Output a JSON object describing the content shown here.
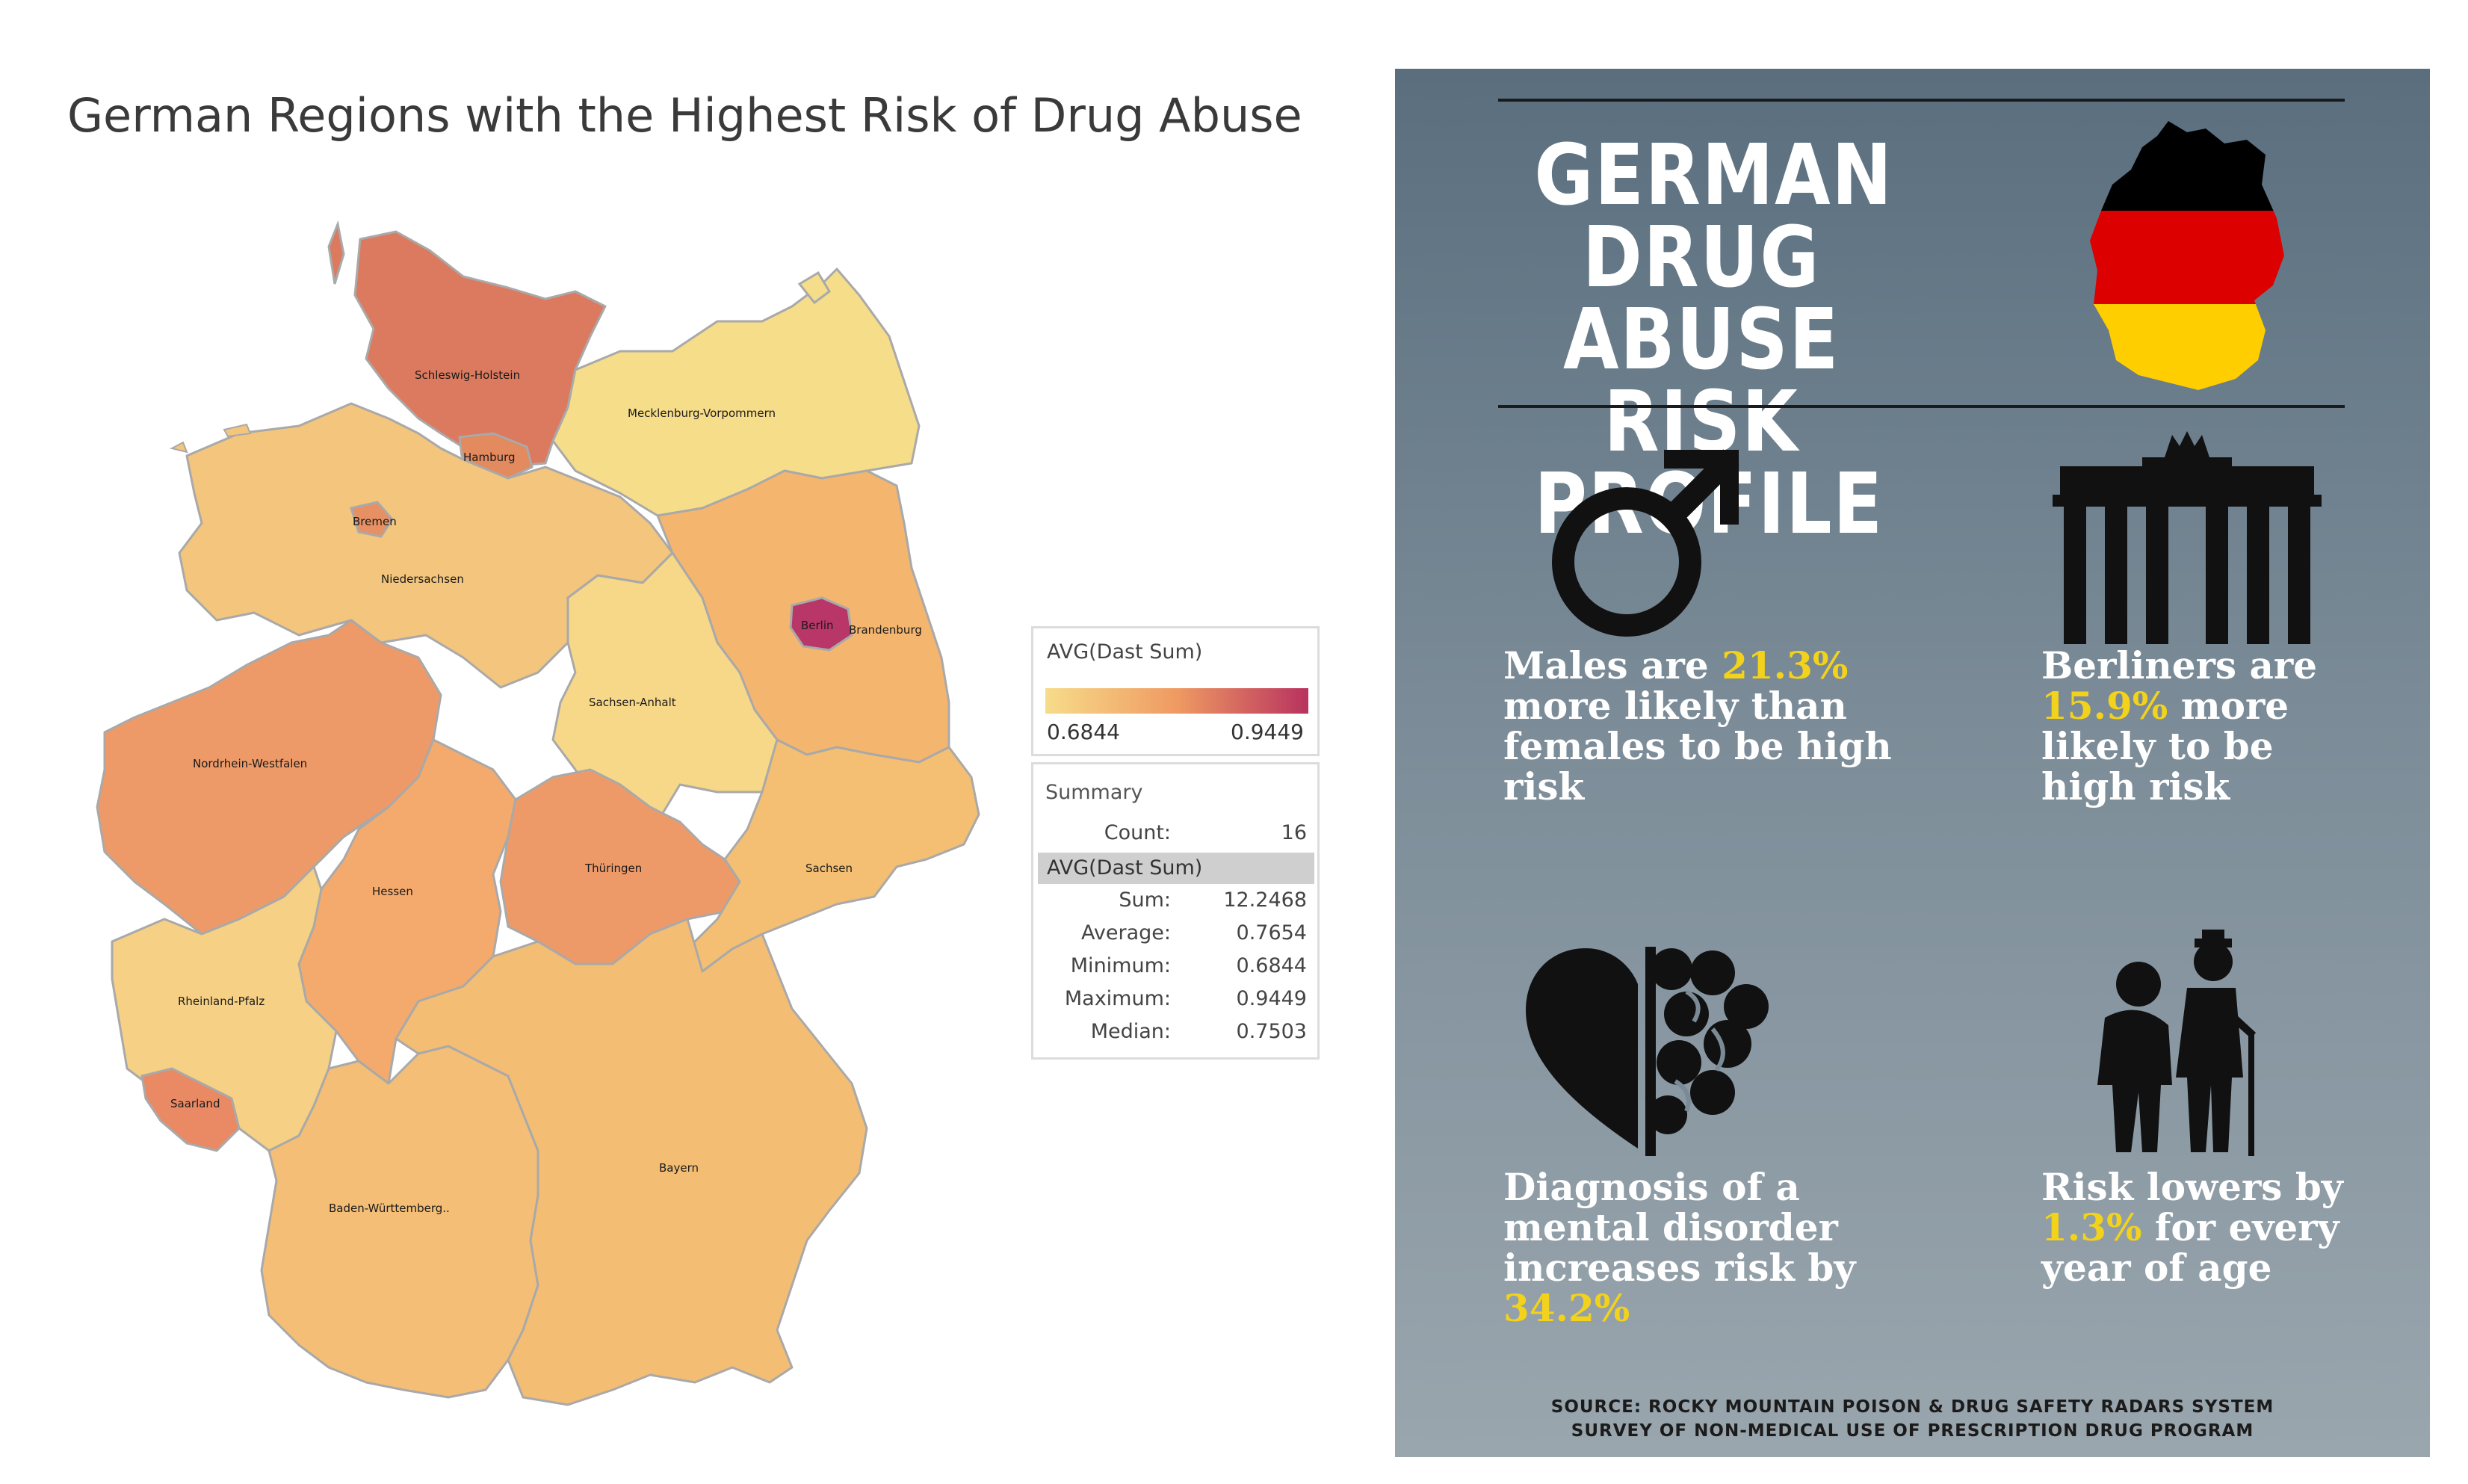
{
  "map": {
    "title": "German Regions with the Highest Risk of Drug Abuse",
    "regions": [
      {
        "name": "Schleswig-Holstein",
        "label": "Schleswig-Holstein",
        "color": "#dc7a60"
      },
      {
        "name": "Hamburg",
        "label": "Hamburg",
        "color": "#e38a5e"
      },
      {
        "name": "Mecklenburg-Vorpommern",
        "label": "Mecklenburg-Vorpommern",
        "color": "#f6dd8a"
      },
      {
        "name": "Bremen",
        "label": "Bremen",
        "color": "#e79063"
      },
      {
        "name": "Niedersachsen",
        "label": "Niedersachsen",
        "color": "#f3c57d"
      },
      {
        "name": "Berlin",
        "label": "Berlin",
        "color": "#b83768"
      },
      {
        "name": "Brandenburg",
        "label": "Brandenburg",
        "color": "#f4b56f"
      },
      {
        "name": "Sachsen-Anhalt",
        "label": "Sachsen-Anhalt",
        "color": "#f6d888"
      },
      {
        "name": "Nordrhein-Westfalen",
        "label": "Nordrhein-Westfalen",
        "color": "#ee9a68"
      },
      {
        "name": "Hessen",
        "label": "Hessen",
        "color": "#f4aa6c"
      },
      {
        "name": "Thüringen",
        "label": "Thüringen",
        "color": "#ee9a68"
      },
      {
        "name": "Sachsen",
        "label": "Sachsen",
        "color": "#f4bf73"
      },
      {
        "name": "Rheinland-Pfalz",
        "label": "Rheinland-Pfalz",
        "color": "#f6d085"
      },
      {
        "name": "Saarland",
        "label": "Saarland",
        "color": "#e98a64"
      },
      {
        "name": "Baden-Württemberg",
        "label": "Baden-Württemberg..",
        "color": "#f4be76"
      },
      {
        "name": "Bayern",
        "label": "Bayern",
        "color": "#f4bd74"
      }
    ],
    "legend": {
      "title": "AVG(Dast Sum)",
      "min": "0.6844",
      "max": "0.9449",
      "color_low": "#f7dc8a",
      "color_mid": "#ef9a62",
      "color_high": "#b8325f"
    },
    "summary": {
      "title": "Summary",
      "count_label": "Count:",
      "count_value": "16",
      "avg_header": "AVG(Dast Sum)",
      "rows": [
        {
          "label": "Sum:",
          "value": "12.2468"
        },
        {
          "label": "Average:",
          "value": "0.7654"
        },
        {
          "label": "Minimum:",
          "value": "0.6844"
        },
        {
          "label": "Maximum:",
          "value": "0.9449"
        },
        {
          "label": "Median:",
          "value": "0.7503"
        }
      ]
    }
  },
  "infographic": {
    "title_line1": "GERMAN DRUG",
    "title_line2": "ABUSE RISK",
    "title_line3": "PROFILE",
    "highlight_color": "#f2d21b",
    "flag_colors": [
      "#000000",
      "#dd0000",
      "#ffce00"
    ],
    "icons": [
      "male-symbol-icon",
      "brandenburg-gate-icon",
      "heart-brain-icon",
      "elderly-couple-icon"
    ],
    "stats": {
      "males": {
        "pre": "Males are ",
        "value": "21.3%",
        "post": " more likely than females to be high risk"
      },
      "berlin": {
        "pre": "Berliners are ",
        "value": "15.9%",
        "post": " more likely to be high risk"
      },
      "mental": {
        "pre": "Diagnosis of a mental disorder increases risk by ",
        "value": "34.2%",
        "post": ""
      },
      "age": {
        "pre": "Risk lowers by ",
        "value": "1.3%",
        "post": " for every year of age"
      }
    },
    "source_line1": "SOURCE: ROCKY MOUNTAIN POISON & DRUG SAFETY RADARS SYSTEM",
    "source_line2": "SURVEY OF NON-MEDICAL USE OF PRESCRIPTION DRUG PROGRAM"
  }
}
